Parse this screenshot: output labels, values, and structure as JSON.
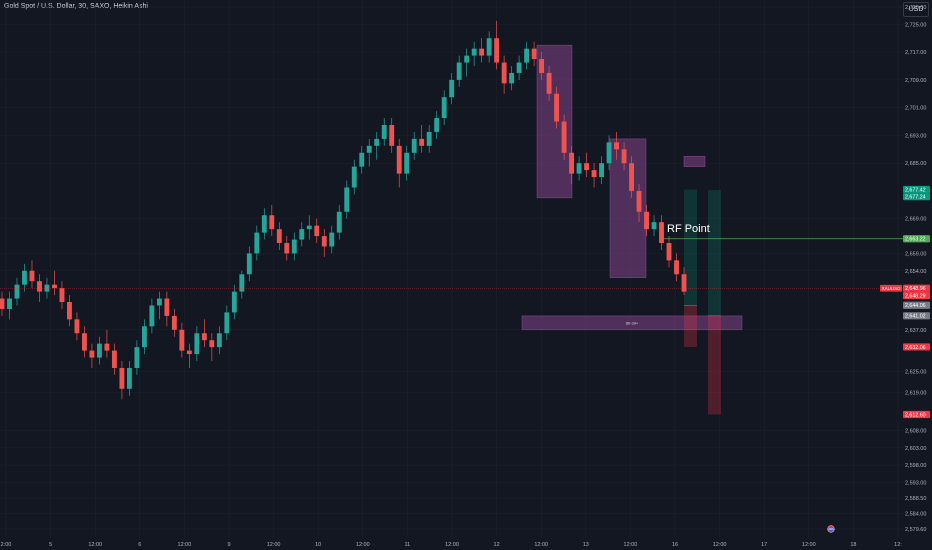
{
  "header": {
    "title": "Gold Spot / U.S. Dollar, 30, SAXO, Heikin Ashi",
    "currency": "USD"
  },
  "colors": {
    "background": "#131722",
    "bull": "#26a69a",
    "bear": "#ef5350",
    "zone": "#9c4f9f",
    "rf_line": "#4caf50",
    "grid": "#1e222d"
  },
  "chart_data": {
    "type": "candlestick",
    "chart_style": "Heikin Ashi",
    "symbol": "XAUUSD",
    "y_axis": {
      "ticks": [
        2730,
        2725,
        2717,
        2709,
        2701,
        2693,
        2685,
        2669,
        2659,
        2654,
        2637,
        2625,
        2619,
        2608,
        2603,
        2598,
        2593,
        2588.5,
        2584,
        2579.6
      ],
      "tick_labels": [
        "2,730.00",
        "2,725.00",
        "2,717.00",
        "2,709.00",
        "2,701.00",
        "2,693.00",
        "2,685.00",
        "2,669.00",
        "2,659.00",
        "2,654.00",
        "2,637.00",
        "2,625.00",
        "2,619.00",
        "2,608.00",
        "2,603.00",
        "2,598.00",
        "2,593.00",
        "2,588.50",
        "2,584.00",
        "2,579.60"
      ]
    },
    "x_axis": {
      "tick_labels": [
        "2:00",
        "5",
        "12:00",
        "6",
        "12:00",
        "9",
        "12:00",
        "10",
        "12:00",
        "11",
        "12:00",
        "12",
        "12:00",
        "13",
        "12:00",
        "16",
        "12:00",
        "17",
        "12:00",
        "18",
        "12:"
      ]
    },
    "series_ohlc": [
      [
        2646,
        2648,
        2641,
        2643
      ],
      [
        2643,
        2648,
        2640,
        2646
      ],
      [
        2646,
        2652,
        2644,
        2650
      ],
      [
        2650,
        2656,
        2648,
        2654
      ],
      [
        2654,
        2657,
        2649,
        2651
      ],
      [
        2651,
        2653,
        2645,
        2648
      ],
      [
        2648,
        2652,
        2646,
        2650
      ],
      [
        2650,
        2654,
        2647,
        2649
      ],
      [
        2649,
        2651,
        2643,
        2645
      ],
      [
        2645,
        2647,
        2638,
        2640
      ],
      [
        2640,
        2642,
        2634,
        2636
      ],
      [
        2636,
        2638,
        2629,
        2631
      ],
      [
        2631,
        2633,
        2626,
        2629
      ],
      [
        2629,
        2635,
        2627,
        2633
      ],
      [
        2633,
        2637,
        2629,
        2631
      ],
      [
        2631,
        2633,
        2624,
        2626
      ],
      [
        2626,
        2628,
        2617,
        2620
      ],
      [
        2620,
        2628,
        2618,
        2626
      ],
      [
        2626,
        2634,
        2624,
        2632
      ],
      [
        2632,
        2640,
        2630,
        2638
      ],
      [
        2638,
        2646,
        2636,
        2644
      ],
      [
        2644,
        2648,
        2640,
        2646
      ],
      [
        2646,
        2648,
        2638,
        2641
      ],
      [
        2641,
        2643,
        2635,
        2637
      ],
      [
        2637,
        2639,
        2629,
        2631
      ],
      [
        2631,
        2633,
        2626,
        2630
      ],
      [
        2630,
        2638,
        2628,
        2636
      ],
      [
        2636,
        2640,
        2632,
        2634
      ],
      [
        2634,
        2636,
        2628,
        2632
      ],
      [
        2632,
        2638,
        2630,
        2636
      ],
      [
        2636,
        2644,
        2634,
        2642
      ],
      [
        2642,
        2650,
        2640,
        2648
      ],
      [
        2648,
        2654,
        2646,
        2653
      ],
      [
        2653,
        2661,
        2651,
        2659
      ],
      [
        2659,
        2667,
        2657,
        2665
      ],
      [
        2665,
        2672,
        2663,
        2670
      ],
      [
        2670,
        2673,
        2664,
        2666
      ],
      [
        2666,
        2668,
        2660,
        2662
      ],
      [
        2662,
        2664,
        2657,
        2659
      ],
      [
        2659,
        2665,
        2657,
        2663
      ],
      [
        2663,
        2668,
        2661,
        2666
      ],
      [
        2666,
        2670,
        2663,
        2667
      ],
      [
        2667,
        2669,
        2662,
        2664
      ],
      [
        2664,
        2666,
        2658,
        2661
      ],
      [
        2661,
        2667,
        2659,
        2665
      ],
      [
        2665,
        2673,
        2663,
        2671
      ],
      [
        2671,
        2680,
        2669,
        2678
      ],
      [
        2678,
        2686,
        2676,
        2684
      ],
      [
        2684,
        2690,
        2682,
        2688
      ],
      [
        2688,
        2692,
        2684,
        2690
      ],
      [
        2690,
        2694,
        2686,
        2692
      ],
      [
        2692,
        2698,
        2690,
        2696
      ],
      [
        2696,
        2698,
        2688,
        2690
      ],
      [
        2690,
        2692,
        2678,
        2682
      ],
      [
        2682,
        2690,
        2680,
        2688
      ],
      [
        2688,
        2694,
        2686,
        2692
      ],
      [
        2692,
        2696,
        2688,
        2690
      ],
      [
        2690,
        2696,
        2688,
        2694
      ],
      [
        2694,
        2700,
        2692,
        2698
      ],
      [
        2698,
        2706,
        2696,
        2704
      ],
      [
        2704,
        2711,
        2702,
        2709
      ],
      [
        2709,
        2716,
        2707,
        2714
      ],
      [
        2714,
        2718,
        2710,
        2716
      ],
      [
        2716,
        2720,
        2713,
        2718
      ],
      [
        2718,
        2721,
        2714,
        2716
      ],
      [
        2716,
        2723,
        2714,
        2721
      ],
      [
        2721,
        2726,
        2712,
        2714
      ],
      [
        2714,
        2716,
        2705,
        2708
      ],
      [
        2708,
        2713,
        2706,
        2711
      ],
      [
        2711,
        2716,
        2709,
        2714
      ],
      [
        2714,
        2720,
        2712,
        2718
      ],
      [
        2718,
        2720,
        2713,
        2715
      ],
      [
        2715,
        2717,
        2709,
        2711
      ],
      [
        2711,
        2713,
        2703,
        2705
      ],
      [
        2705,
        2707,
        2695,
        2697
      ],
      [
        2697,
        2699,
        2686,
        2688
      ],
      [
        2688,
        2690,
        2679,
        2682
      ],
      [
        2682,
        2687,
        2680,
        2685
      ],
      [
        2685,
        2688,
        2681,
        2683
      ],
      [
        2683,
        2685,
        2678,
        2681
      ],
      [
        2681,
        2687,
        2679,
        2685
      ],
      [
        2685,
        2693,
        2683,
        2691
      ],
      [
        2691,
        2694,
        2686,
        2689
      ],
      [
        2689,
        2691,
        2683,
        2685
      ],
      [
        2685,
        2687,
        2675,
        2677
      ],
      [
        2677,
        2679,
        2668,
        2671
      ],
      [
        2671,
        2673,
        2664,
        2666
      ],
      [
        2666,
        2670,
        2664,
        2668
      ],
      [
        2668,
        2670,
        2660,
        2662
      ],
      [
        2662,
        2664,
        2655,
        2657
      ],
      [
        2657,
        2659,
        2651,
        2653
      ],
      [
        2653,
        2655,
        2647,
        2648
      ]
    ],
    "annotations": [
      {
        "type": "rectangle",
        "label": "",
        "x_range": [
          537,
          572
        ],
        "y_range": [
          2719,
          2675
        ],
        "color": "#9c4f9f"
      },
      {
        "type": "rectangle",
        "label": "",
        "x_range": [
          610,
          646
        ],
        "y_range": [
          2692,
          2652
        ],
        "color": "#9c4f9f"
      },
      {
        "type": "rectangle",
        "label": "",
        "x_range": [
          684,
          705
        ],
        "y_range": [
          2687,
          2684
        ],
        "color": "#9c4f9f"
      },
      {
        "type": "rectangle",
        "label": "86-39+",
        "x_range": [
          522,
          742
        ],
        "y_range": [
          2641,
          2637
        ],
        "color": "#9c4f9f"
      },
      {
        "type": "horizontal_line",
        "label": "RF Point",
        "price": 2663.22
      },
      {
        "type": "position",
        "side": "short",
        "entry": 2644.0,
        "target_top": 2677.42,
        "stop": 2632.06
      },
      {
        "type": "position",
        "side": "short",
        "entry": 2641.02,
        "target_top": 2677.24,
        "stop": 2612.6
      }
    ],
    "price_tags": [
      {
        "label": "2,677.42",
        "price": 2677.42,
        "color": "#089981"
      },
      {
        "label": "2,677.24",
        "price": 2677.24,
        "color": "#089981"
      },
      {
        "label": "2,663.22",
        "price": 2663.22,
        "color": "#4caf50"
      },
      {
        "label": "2,648.96",
        "price": 2648.96,
        "color": "#f23645"
      },
      {
        "label": "2,648.29",
        "price": 2648.29,
        "color": "#f23645"
      },
      {
        "label": "2,644.06",
        "price": 2644.06,
        "color": "#787b86"
      },
      {
        "label": "2,641.02",
        "price": 2641.02,
        "color": "#787b86"
      },
      {
        "label": "2,632.06",
        "price": 2632.06,
        "color": "#f23645"
      },
      {
        "label": "2,612.60",
        "price": 2612.6,
        "color": "#f23645"
      }
    ],
    "symbol_tag": "XAUUSD",
    "current_price": 2648.96,
    "grid": true,
    "legend": "none"
  }
}
